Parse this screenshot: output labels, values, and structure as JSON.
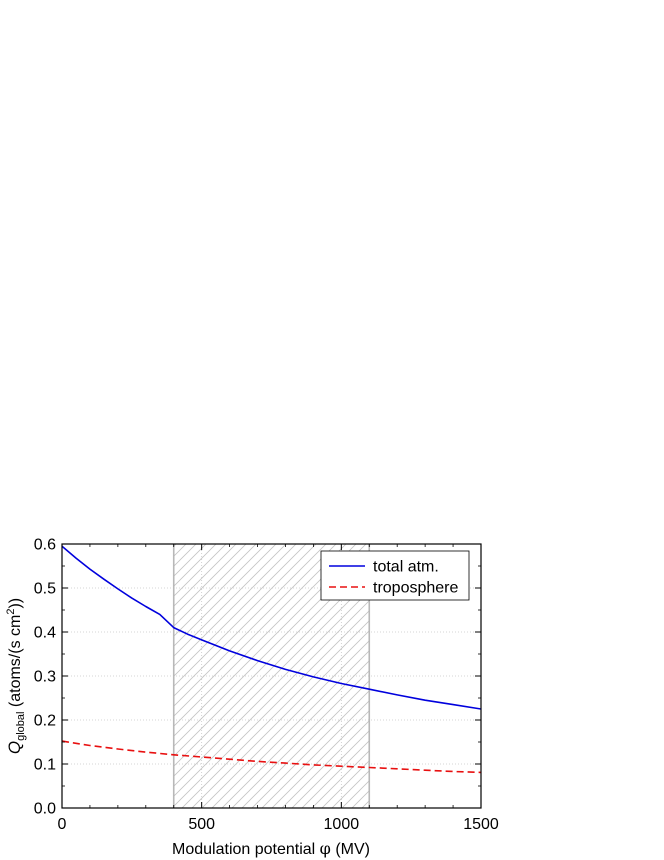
{
  "chart_data": {
    "type": "line",
    "xlabel": {
      "main": "Modulation potential ",
      "symbol": "φ",
      "unit": " (MV)"
    },
    "ylabel": {
      "symbol": "Q",
      "subscript": "global",
      "unit_pre": " (atoms/(s cm",
      "superscript": "2",
      "unit_post": "))"
    },
    "xlim": [
      0,
      1500
    ],
    "ylim": [
      0,
      0.6
    ],
    "xticks": [
      "0",
      "500",
      "1000",
      "1500"
    ],
    "yticks": [
      "0.0",
      "0.1",
      "0.2",
      "0.3",
      "0.4",
      "0.5",
      "0.6"
    ],
    "grid": true,
    "legend_position": "top-right",
    "shaded_region": {
      "x": [
        400,
        1100
      ],
      "pattern": "hatched",
      "color": "#b8b8b8"
    },
    "series": [
      {
        "name": "total atm.",
        "color": "#0000dd",
        "style": "solid",
        "x": [
          0,
          50,
          100,
          150,
          200,
          250,
          300,
          350,
          400,
          450,
          500,
          600,
          700,
          800,
          900,
          1000,
          1100,
          1200,
          1300,
          1400,
          1500
        ],
        "y": [
          0.595,
          0.568,
          0.543,
          0.52,
          0.498,
          0.477,
          0.458,
          0.44,
          0.41,
          0.395,
          0.382,
          0.357,
          0.335,
          0.315,
          0.298,
          0.283,
          0.27,
          0.257,
          0.245,
          0.235,
          0.225
        ]
      },
      {
        "name": "troposphere",
        "color": "#e81010",
        "style": "dashed",
        "x": [
          0,
          100,
          200,
          300,
          400,
          500,
          600,
          700,
          800,
          900,
          1000,
          1100,
          1200,
          1300,
          1400,
          1500
        ],
        "y": [
          0.152,
          0.142,
          0.134,
          0.127,
          0.121,
          0.116,
          0.111,
          0.106,
          0.102,
          0.098,
          0.095,
          0.092,
          0.089,
          0.086,
          0.083,
          0.081
        ]
      }
    ]
  }
}
